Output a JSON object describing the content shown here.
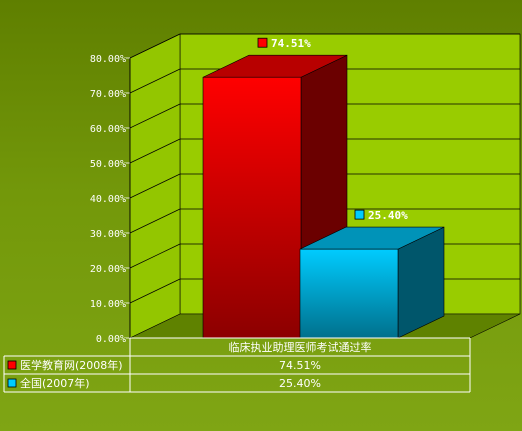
{
  "chart_data": {
    "type": "bar",
    "categories": [
      "临床执业助理医师考试通过率"
    ],
    "series": [
      {
        "name": "医学教育网(2008年)",
        "values": [
          74.51
        ],
        "value_label": "74.51%",
        "color": "#ff0000"
      },
      {
        "name": "全国(2007年)",
        "values": [
          25.4
        ],
        "value_label": "25.40%",
        "color": "#00ccff"
      }
    ],
    "ylim": [
      0,
      80
    ],
    "yticks": [
      "0.00%",
      "10.00%",
      "20.00%",
      "30.00%",
      "40.00%",
      "50.00%",
      "60.00%",
      "70.00%",
      "80.00%"
    ],
    "grid": true,
    "three_d": true,
    "data_table": true
  },
  "colors": {
    "background": "#688a00",
    "plot_wall": "#99cc00",
    "wall_grid": "#000000"
  }
}
